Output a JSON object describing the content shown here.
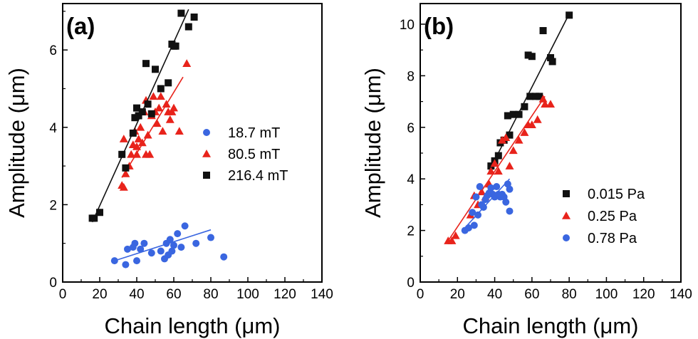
{
  "chart_data": [
    {
      "type": "scatter",
      "panel_label": "(a)",
      "xlabel": "Chain length (μm)",
      "ylabel": "Amplitude (μm)",
      "xlim": [
        0,
        140
      ],
      "ylim": [
        0,
        7.2
      ],
      "xticks": [
        0,
        20,
        40,
        60,
        80,
        100,
        120,
        140
      ],
      "yticks": [
        0,
        2,
        4,
        6
      ],
      "grid": false,
      "legend": {
        "position": "center-right"
      },
      "series": [
        {
          "name": "18.7 mT",
          "color": "#3a66e0",
          "marker": "circle",
          "points": [
            [
              28,
              0.55
            ],
            [
              34,
              0.45
            ],
            [
              35,
              0.85
            ],
            [
              38,
              0.9
            ],
            [
              39,
              1.0
            ],
            [
              40,
              0.55
            ],
            [
              42,
              0.85
            ],
            [
              44,
              1.0
            ],
            [
              48,
              0.75
            ],
            [
              53,
              0.8
            ],
            [
              55,
              0.6
            ],
            [
              56,
              1.0
            ],
            [
              57,
              0.7
            ],
            [
              58,
              1.1
            ],
            [
              59,
              0.8
            ],
            [
              60,
              0.95
            ],
            [
              62,
              1.25
            ],
            [
              64,
              0.9
            ],
            [
              66,
              1.45
            ],
            [
              72,
              1.0
            ],
            [
              80,
              1.15
            ],
            [
              87,
              0.65
            ]
          ],
          "fit": [
            [
              28,
              0.55
            ],
            [
              80,
              1.35
            ]
          ]
        },
        {
          "name": "80.5 mT",
          "color": "#e8231b",
          "marker": "triangle",
          "points": [
            [
              32,
              2.5
            ],
            [
              33,
              2.45
            ],
            [
              33,
              3.7
            ],
            [
              34,
              2.8
            ],
            [
              36,
              3.0
            ],
            [
              37,
              3.3
            ],
            [
              38,
              3.55
            ],
            [
              39,
              3.9
            ],
            [
              40,
              3.5
            ],
            [
              40,
              3.3
            ],
            [
              41,
              3.7
            ],
            [
              42,
              4.0
            ],
            [
              43,
              3.6
            ],
            [
              44,
              4.4
            ],
            [
              45,
              4.7
            ],
            [
              45,
              3.3
            ],
            [
              46,
              3.8
            ],
            [
              47,
              3.3
            ],
            [
              48,
              4.3
            ],
            [
              49,
              4.8
            ],
            [
              50,
              4.4
            ],
            [
              51,
              4.1
            ],
            [
              52,
              4.5
            ],
            [
              53,
              4.8
            ],
            [
              54,
              3.9
            ],
            [
              56,
              4.6
            ],
            [
              57,
              4.4
            ],
            [
              58,
              4.2
            ],
            [
              59,
              4.4
            ],
            [
              60,
              4.5
            ],
            [
              63,
              3.9
            ],
            [
              67,
              5.65
            ]
          ],
          "fit": [
            [
              32,
              2.7
            ],
            [
              65,
              5.3
            ]
          ]
        },
        {
          "name": "216.4 mT",
          "color": "#111111",
          "marker": "square",
          "points": [
            [
              16,
              1.65
            ],
            [
              17,
              1.65
            ],
            [
              20,
              1.8
            ],
            [
              32,
              3.3
            ],
            [
              34,
              2.95
            ],
            [
              38,
              3.85
            ],
            [
              39,
              4.25
            ],
            [
              40,
              4.5
            ],
            [
              41,
              4.3
            ],
            [
              43,
              4.4
            ],
            [
              45,
              5.65
            ],
            [
              46,
              4.6
            ],
            [
              48,
              4.35
            ],
            [
              50,
              5.5
            ],
            [
              53,
              5.0
            ],
            [
              57,
              5.15
            ],
            [
              59,
              6.15
            ],
            [
              60,
              6.1
            ],
            [
              61,
              6.1
            ],
            [
              64,
              6.95
            ],
            [
              68,
              6.6
            ],
            [
              71,
              6.85
            ]
          ],
          "fit": [
            [
              16,
              1.55
            ],
            [
              68,
              7.05
            ]
          ]
        }
      ]
    },
    {
      "type": "scatter",
      "panel_label": "(b)",
      "xlabel": "Chain length (μm)",
      "ylabel": "Amplitude (μm)",
      "xlim": [
        0,
        140
      ],
      "ylim": [
        0,
        10.8
      ],
      "xticks": [
        0,
        20,
        40,
        60,
        80,
        100,
        120,
        140
      ],
      "yticks": [
        0,
        2,
        4,
        6,
        8,
        10
      ],
      "grid": false,
      "legend": {
        "position": "lower-right"
      },
      "series": [
        {
          "name": "0.015 Pa",
          "color": "#111111",
          "marker": "square",
          "points": [
            [
              38,
              4.5
            ],
            [
              40,
              4.7
            ],
            [
              42,
              4.9
            ],
            [
              43,
              5.4
            ],
            [
              45,
              5.5
            ],
            [
              47,
              6.45
            ],
            [
              48,
              5.7
            ],
            [
              50,
              6.5
            ],
            [
              53,
              6.5
            ],
            [
              56,
              6.8
            ],
            [
              58,
              8.8
            ],
            [
              59,
              7.2
            ],
            [
              60,
              8.75
            ],
            [
              62,
              7.2
            ],
            [
              64,
              7.2
            ],
            [
              66,
              9.75
            ],
            [
              70,
              8.7
            ],
            [
              71,
              8.55
            ],
            [
              80,
              10.35
            ]
          ],
          "fit": [
            [
              37,
              4.3
            ],
            [
              80,
              10.4
            ]
          ]
        },
        {
          "name": "0.25 Pa",
          "color": "#e8231b",
          "marker": "triangle",
          "points": [
            [
              15,
              1.6
            ],
            [
              17,
              1.6
            ],
            [
              19,
              1.8
            ],
            [
              27,
              2.6
            ],
            [
              29,
              3.35
            ],
            [
              31,
              3.0
            ],
            [
              33,
              3.5
            ],
            [
              35,
              3.3
            ],
            [
              37,
              3.8
            ],
            [
              38,
              4.3
            ],
            [
              40,
              4.6
            ],
            [
              42,
              4.3
            ],
            [
              44,
              5.5
            ],
            [
              46,
              5.6
            ],
            [
              48,
              4.5
            ],
            [
              50,
              5.1
            ],
            [
              53,
              5.5
            ],
            [
              56,
              5.8
            ],
            [
              58,
              6.1
            ],
            [
              60,
              6.1
            ],
            [
              63,
              6.3
            ],
            [
              66,
              7.1
            ],
            [
              67,
              6.9
            ],
            [
              70,
              6.9
            ]
          ],
          "fit": [
            [
              15,
              1.6
            ],
            [
              67,
              7.2
            ]
          ]
        },
        {
          "name": "0.78 Pa",
          "color": "#3a66e0",
          "marker": "circle",
          "points": [
            [
              24,
              2.0
            ],
            [
              26,
              2.1
            ],
            [
              28,
              2.7
            ],
            [
              29,
              2.2
            ],
            [
              30,
              3.3
            ],
            [
              31,
              2.6
            ],
            [
              32,
              3.7
            ],
            [
              33,
              3.0
            ],
            [
              34,
              2.9
            ],
            [
              35,
              3.2
            ],
            [
              36,
              3.35
            ],
            [
              37,
              3.45
            ],
            [
              38,
              3.65
            ],
            [
              39,
              3.4
            ],
            [
              40,
              3.3
            ],
            [
              41,
              3.7
            ],
            [
              42,
              3.4
            ],
            [
              43,
              3.3
            ],
            [
              44,
              3.4
            ],
            [
              45,
              3.3
            ],
            [
              46,
              3.1
            ],
            [
              47,
              3.8
            ],
            [
              48,
              2.75
            ],
            [
              48,
              3.6
            ]
          ],
          "fit": [
            [
              24,
              2.1
            ],
            [
              48,
              4.0
            ]
          ]
        }
      ]
    }
  ]
}
